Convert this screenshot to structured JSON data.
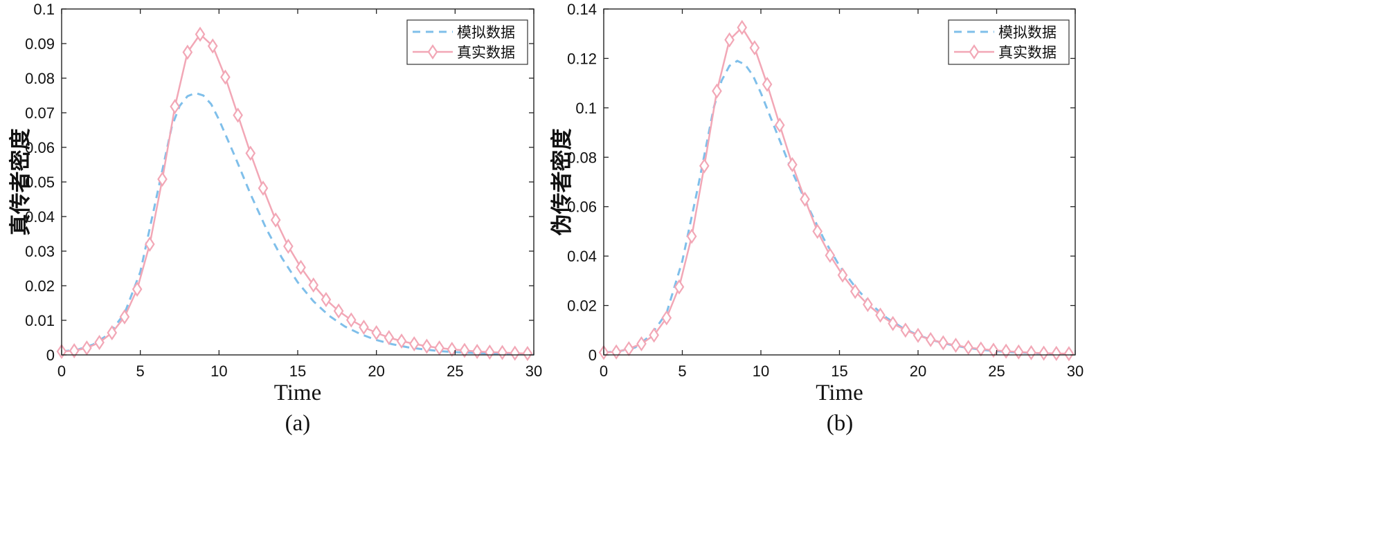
{
  "chart_data": [
    {
      "type": "line",
      "caption": "(a)",
      "xlabel": "Time",
      "ylabel": "真传者密度",
      "xlim": [
        0,
        30
      ],
      "ylim": [
        0,
        0.1
      ],
      "xticks": [
        0,
        5,
        10,
        15,
        20,
        25,
        30
      ],
      "xtick_labels": [
        "0",
        "5",
        "10",
        "15",
        "20",
        "25",
        "30"
      ],
      "yticks": [
        0,
        0.01,
        0.02,
        0.03,
        0.04,
        0.05,
        0.06,
        0.07,
        0.08,
        0.09,
        0.1
      ],
      "ytick_labels": [
        "0",
        "0.01",
        "0.02",
        "0.03",
        "0.04",
        "0.05",
        "0.06",
        "0.07",
        "0.08",
        "0.09",
        "0.1"
      ],
      "legend_position": "top-right",
      "series": [
        {
          "name": "模拟数据",
          "style": "dashed",
          "color": "#7fbfea",
          "x": [
            0,
            1,
            2,
            3,
            4,
            5,
            6,
            7,
            7.5,
            8,
            8.5,
            9,
            9.5,
            10,
            11,
            12,
            13,
            14,
            15,
            16,
            17,
            18,
            19,
            20,
            21,
            22,
            23,
            24,
            25,
            26,
            27,
            28,
            29,
            30
          ],
          "y": [
            0.001,
            0.0015,
            0.003,
            0.006,
            0.012,
            0.024,
            0.045,
            0.066,
            0.072,
            0.0748,
            0.0757,
            0.075,
            0.0725,
            0.068,
            0.0575,
            0.0465,
            0.0365,
            0.028,
            0.021,
            0.0155,
            0.0113,
            0.0082,
            0.006,
            0.0043,
            0.0031,
            0.0022,
            0.0016,
            0.0011,
            0.0008,
            0.0006,
            0.0004,
            0.0003,
            0.0002,
            0.0001
          ]
        },
        {
          "name": "真实数据",
          "style": "solid-diamond",
          "color": "#f2a7b6",
          "x": [
            0,
            0.8,
            1.6,
            2.4,
            3.2,
            4.0,
            4.8,
            5.6,
            6.4,
            7.2,
            8.0,
            8.8,
            9.6,
            10.4,
            11.2,
            12.0,
            12.8,
            13.6,
            14.4,
            15.2,
            16.0,
            16.8,
            17.6,
            18.4,
            19.2,
            20.0,
            20.8,
            21.6,
            22.4,
            23.2,
            24.0,
            24.8,
            25.6,
            26.4,
            27.2,
            28.0,
            28.8,
            29.6
          ],
          "y": [
            0.001,
            0.0012,
            0.002,
            0.0036,
            0.0064,
            0.011,
            0.019,
            0.032,
            0.0508,
            0.0718,
            0.0875,
            0.0927,
            0.0893,
            0.0803,
            0.0693,
            0.0583,
            0.0482,
            0.039,
            0.0314,
            0.0253,
            0.0202,
            0.016,
            0.0127,
            0.0101,
            0.008,
            0.0064,
            0.005,
            0.004,
            0.0032,
            0.0025,
            0.002,
            0.0016,
            0.0013,
            0.001,
            0.0008,
            0.0007,
            0.0005,
            0.0004
          ]
        }
      ]
    },
    {
      "type": "line",
      "caption": "(b)",
      "xlabel": "Time",
      "ylabel": "伪传者密度",
      "xlim": [
        0,
        30
      ],
      "ylim": [
        0,
        0.14
      ],
      "xticks": [
        0,
        5,
        10,
        15,
        20,
        25,
        30
      ],
      "xtick_labels": [
        "0",
        "5",
        "10",
        "15",
        "20",
        "25",
        "30"
      ],
      "yticks": [
        0,
        0.02,
        0.04,
        0.06,
        0.08,
        0.1,
        0.12,
        0.14
      ],
      "ytick_labels": [
        "0",
        "0.02",
        "0.04",
        "0.06",
        "0.08",
        "0.1",
        "0.12",
        "0.14"
      ],
      "legend_position": "top-right",
      "series": [
        {
          "name": "模拟数据",
          "style": "dashed",
          "color": "#7fbfea",
          "x": [
            0,
            1,
            2,
            3,
            4,
            5,
            6,
            7,
            7.5,
            8,
            8.5,
            9,
            9.5,
            10,
            11,
            12,
            13,
            14,
            15,
            16,
            17,
            18,
            19,
            20,
            21,
            22,
            23,
            24,
            25,
            26,
            27,
            28,
            29,
            30
          ],
          "y": [
            0.001,
            0.0015,
            0.003,
            0.008,
            0.017,
            0.038,
            0.068,
            0.1,
            0.111,
            0.117,
            0.119,
            0.1175,
            0.113,
            0.106,
            0.09,
            0.074,
            0.06,
            0.047,
            0.036,
            0.0275,
            0.0205,
            0.015,
            0.011,
            0.008,
            0.0058,
            0.0042,
            0.003,
            0.0021,
            0.0015,
            0.0011,
            0.0008,
            0.0006,
            0.0004,
            0.0003
          ]
        },
        {
          "name": "真实数据",
          "style": "solid-diamond",
          "color": "#f2a7b6",
          "x": [
            0,
            0.8,
            1.6,
            2.4,
            3.2,
            4.0,
            4.8,
            5.6,
            6.4,
            7.2,
            8.0,
            8.8,
            9.6,
            10.4,
            11.2,
            12.0,
            12.8,
            13.6,
            14.4,
            15.2,
            16.0,
            16.8,
            17.6,
            18.4,
            19.2,
            20.0,
            20.8,
            21.6,
            22.4,
            23.2,
            24.0,
            24.8,
            25.6,
            26.4,
            27.2,
            28.0,
            28.8,
            29.6
          ],
          "y": [
            0.001,
            0.0012,
            0.0025,
            0.0045,
            0.008,
            0.015,
            0.0275,
            0.048,
            0.0765,
            0.1068,
            0.1275,
            0.1325,
            0.1243,
            0.1095,
            0.093,
            0.077,
            0.063,
            0.05,
            0.0403,
            0.0323,
            0.0257,
            0.0204,
            0.0161,
            0.0127,
            0.01,
            0.0079,
            0.0062,
            0.0049,
            0.0039,
            0.003,
            0.0024,
            0.0019,
            0.0015,
            0.0012,
            0.0009,
            0.0007,
            0.0006,
            0.0005
          ]
        }
      ]
    }
  ]
}
